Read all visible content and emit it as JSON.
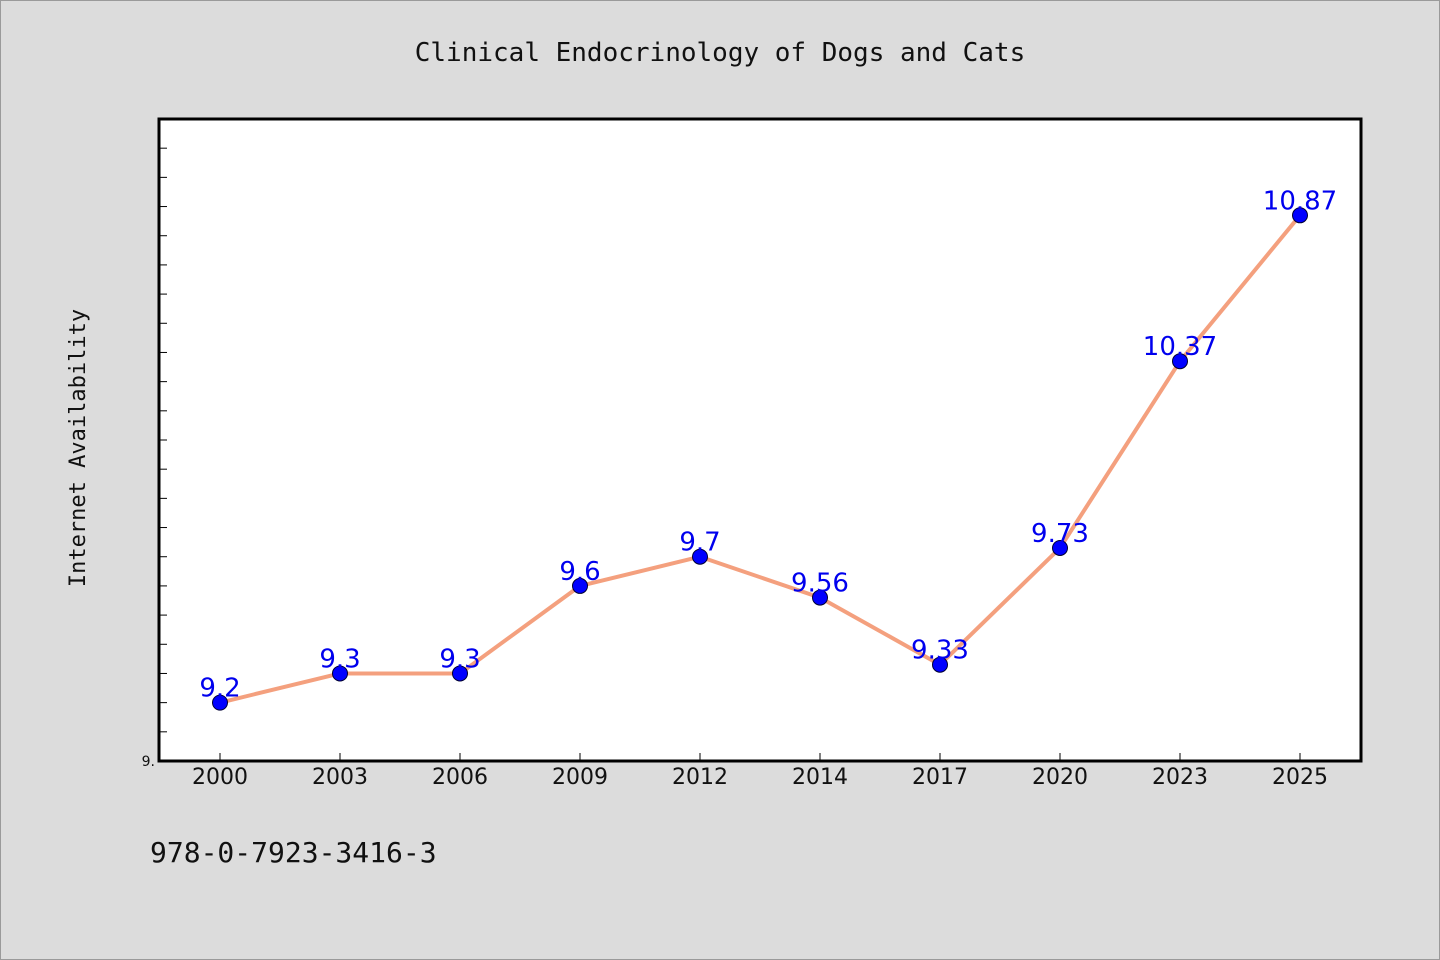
{
  "chart_data": {
    "type": "line",
    "title": "Clinical Endocrinology of Dogs and Cats",
    "xlabel": "",
    "ylabel": "Internet Availability",
    "categories": [
      "2000",
      "2003",
      "2006",
      "2009",
      "2012",
      "2014",
      "2017",
      "2020",
      "2023",
      "2025"
    ],
    "series": [
      {
        "values": [
          9.2,
          9.3,
          9.3,
          9.6,
          9.7,
          9.56,
          9.33,
          9.73,
          10.37,
          10.87
        ],
        "labels": [
          "9.2",
          "9.3",
          "9.3",
          "9.6",
          "9.7",
          "9.56",
          "9.33",
          "9.73",
          "10.37",
          "10.87"
        ]
      }
    ],
    "ylim": [
      9.0,
      11.2
    ],
    "yticks_labeled": [
      "9."
    ],
    "grid": false,
    "legend": "none",
    "colors": {
      "line": "#f4a07e",
      "marker": "#0000ff",
      "label": "#0000ee",
      "background": "#dcdcdc",
      "plot_background": "#ffffff"
    }
  },
  "footnote": "978-0-7923-3416-3"
}
